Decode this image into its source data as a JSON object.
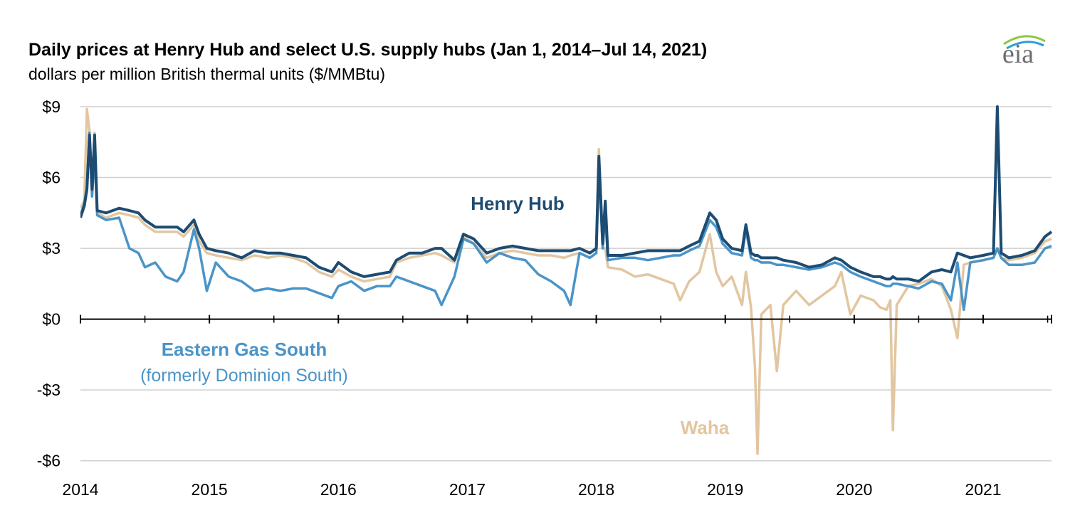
{
  "chart_data": {
    "type": "line",
    "title": "Daily prices at Henry Hub and select U.S. supply hubs (Jan 1, 2014–Jul 14, 2021)",
    "subtitle": "dollars per million British thermal units ($/MMBtu)",
    "logo": "eia",
    "annotations": [
      "(formerly Dominion South)"
    ],
    "x": [
      2014.0,
      2014.03,
      2014.05,
      2014.07,
      2014.09,
      2014.11,
      2014.13,
      2014.2,
      2014.3,
      2014.38,
      2014.45,
      2014.5,
      2014.58,
      2014.66,
      2014.75,
      2014.8,
      2014.88,
      2014.92,
      2014.98,
      2015.05,
      2015.15,
      2015.25,
      2015.35,
      2015.45,
      2015.55,
      2015.65,
      2015.75,
      2015.85,
      2015.95,
      2016.0,
      2016.1,
      2016.2,
      2016.3,
      2016.4,
      2016.45,
      2016.55,
      2016.65,
      2016.75,
      2016.8,
      2016.9,
      2016.97,
      2017.05,
      2017.15,
      2017.25,
      2017.35,
      2017.45,
      2017.55,
      2017.65,
      2017.75,
      2017.8,
      2017.87,
      2017.95,
      2018.0,
      2018.02,
      2018.05,
      2018.07,
      2018.09,
      2018.2,
      2018.3,
      2018.4,
      2018.5,
      2018.6,
      2018.65,
      2018.72,
      2018.8,
      2018.88,
      2018.93,
      2018.98,
      2019.05,
      2019.13,
      2019.16,
      2019.2,
      2019.23,
      2019.25,
      2019.28,
      2019.35,
      2019.4,
      2019.45,
      2019.55,
      2019.65,
      2019.75,
      2019.85,
      2019.9,
      2019.97,
      2020.05,
      2020.15,
      2020.2,
      2020.25,
      2020.28,
      2020.3,
      2020.33,
      2020.42,
      2020.5,
      2020.6,
      2020.68,
      2020.75,
      2020.8,
      2020.85,
      2020.9,
      2021.0,
      2021.08,
      2021.11,
      2021.14,
      2021.2,
      2021.3,
      2021.4,
      2021.48,
      2021.53
    ],
    "series": [
      {
        "name": "Waha",
        "color": "#e2c6a1",
        "values": [
          4.7,
          5.0,
          8.9,
          8.0,
          5.5,
          7.9,
          4.5,
          4.3,
          4.5,
          4.4,
          4.3,
          4.0,
          3.7,
          3.7,
          3.7,
          3.5,
          4.0,
          3.3,
          2.8,
          2.7,
          2.6,
          2.5,
          2.7,
          2.6,
          2.7,
          2.6,
          2.4,
          2.0,
          1.8,
          2.1,
          1.8,
          1.6,
          1.7,
          1.8,
          2.4,
          2.6,
          2.7,
          2.8,
          2.7,
          2.4,
          3.5,
          3.2,
          2.6,
          2.8,
          2.9,
          2.8,
          2.7,
          2.7,
          2.6,
          2.7,
          2.8,
          2.6,
          2.8,
          7.2,
          3.0,
          3.0,
          2.2,
          2.1,
          1.8,
          1.9,
          1.7,
          1.5,
          0.8,
          1.6,
          2.0,
          3.6,
          2.0,
          1.4,
          1.8,
          0.6,
          2.0,
          0.5,
          -2.0,
          -5.7,
          0.2,
          0.6,
          -2.2,
          0.6,
          1.2,
          0.6,
          1.0,
          1.4,
          2.0,
          0.2,
          1.0,
          0.8,
          0.5,
          0.4,
          0.8,
          -4.7,
          0.6,
          1.4,
          1.5,
          1.7,
          1.4,
          0.4,
          -0.8,
          2.3,
          2.4,
          2.5,
          2.6,
          3.0,
          2.6,
          2.5,
          2.6,
          2.8,
          3.3,
          3.4
        ]
      },
      {
        "name": "Eastern Gas South",
        "color": "#4a94c8",
        "values": [
          4.4,
          4.9,
          5.6,
          7.9,
          5.2,
          7.0,
          4.4,
          4.2,
          4.3,
          3.0,
          2.8,
          2.2,
          2.4,
          1.8,
          1.6,
          2.0,
          3.8,
          3.0,
          1.2,
          2.4,
          1.8,
          1.6,
          1.2,
          1.3,
          1.2,
          1.3,
          1.3,
          1.1,
          0.9,
          1.4,
          1.6,
          1.2,
          1.4,
          1.4,
          1.8,
          1.6,
          1.4,
          1.2,
          0.6,
          1.8,
          3.4,
          3.2,
          2.4,
          2.8,
          2.6,
          2.5,
          1.9,
          1.6,
          1.2,
          0.6,
          2.8,
          2.6,
          2.8,
          6.5,
          3.0,
          4.5,
          2.5,
          2.6,
          2.6,
          2.5,
          2.6,
          2.7,
          2.7,
          2.9,
          3.1,
          4.2,
          3.9,
          3.2,
          2.8,
          2.7,
          3.8,
          2.6,
          2.5,
          2.5,
          2.4,
          2.4,
          2.3,
          2.3,
          2.2,
          2.1,
          2.2,
          2.4,
          2.3,
          2.0,
          1.8,
          1.6,
          1.5,
          1.4,
          1.4,
          1.5,
          1.5,
          1.4,
          1.3,
          1.6,
          1.5,
          0.8,
          2.4,
          0.4,
          2.4,
          2.5,
          2.6,
          3.0,
          2.6,
          2.3,
          2.3,
          2.4,
          3.0,
          3.1
        ]
      },
      {
        "name": "Henry Hub",
        "color": "#1d4c73",
        "values": [
          4.3,
          4.8,
          5.5,
          7.8,
          5.5,
          7.8,
          4.6,
          4.5,
          4.7,
          4.6,
          4.5,
          4.2,
          3.9,
          3.9,
          3.9,
          3.7,
          4.2,
          3.6,
          3.0,
          2.9,
          2.8,
          2.6,
          2.9,
          2.8,
          2.8,
          2.7,
          2.6,
          2.2,
          2.0,
          2.4,
          2.0,
          1.8,
          1.9,
          2.0,
          2.5,
          2.8,
          2.8,
          3.0,
          3.0,
          2.5,
          3.6,
          3.4,
          2.8,
          3.0,
          3.1,
          3.0,
          2.9,
          2.9,
          2.9,
          2.9,
          3.0,
          2.8,
          3.0,
          6.9,
          3.2,
          5.0,
          2.7,
          2.7,
          2.8,
          2.9,
          2.9,
          2.9,
          2.9,
          3.1,
          3.3,
          4.5,
          4.2,
          3.4,
          3.0,
          2.9,
          4.0,
          2.8,
          2.7,
          2.7,
          2.6,
          2.6,
          2.6,
          2.5,
          2.4,
          2.2,
          2.3,
          2.6,
          2.5,
          2.2,
          2.0,
          1.8,
          1.8,
          1.7,
          1.7,
          1.8,
          1.7,
          1.7,
          1.6,
          2.0,
          2.1,
          2.0,
          2.8,
          2.7,
          2.6,
          2.7,
          2.8,
          9.0,
          2.8,
          2.6,
          2.7,
          2.9,
          3.5,
          3.7
        ]
      }
    ],
    "xlim": [
      2014,
      2021.53
    ],
    "xticks": [
      2014,
      2015,
      2016,
      2017,
      2018,
      2019,
      2020,
      2021
    ],
    "ylim": [
      -6.4,
      9
    ],
    "yticks": [
      {
        "value": -6,
        "label": "-$6"
      },
      {
        "value": -3,
        "label": "-$3"
      },
      {
        "value": 0,
        "label": "$0"
      },
      {
        "value": 3,
        "label": "$3"
      },
      {
        "value": 6,
        "label": "$6"
      },
      {
        "value": 9,
        "label": "$9"
      }
    ],
    "grid": true
  }
}
